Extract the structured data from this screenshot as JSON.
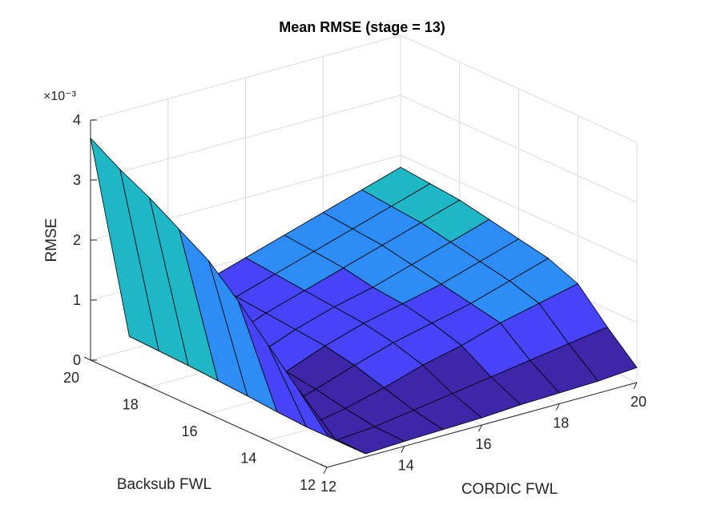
{
  "chart_data": {
    "type": "surface",
    "title": "Mean RMSE (stage = 13)",
    "xlabel": "CORDIC FWL",
    "ylabel": "Backsub FWL",
    "zlabel": "RMSE",
    "z_exponent_label": "×10⁻³",
    "x": [
      12,
      13,
      14,
      15,
      16,
      17,
      18,
      19,
      20
    ],
    "y": [
      12,
      13,
      14,
      15,
      16,
      17,
      18,
      19,
      20
    ],
    "x_ticks": [
      12,
      14,
      16,
      18,
      20
    ],
    "y_ticks": [
      12,
      14,
      16,
      18,
      20
    ],
    "z_ticks": [
      0,
      1,
      2,
      3,
      4
    ],
    "z_scale": 0.001,
    "xlim": [
      12,
      20
    ],
    "ylim": [
      12,
      20
    ],
    "zlim": [
      0,
      4
    ],
    "grid": true,
    "colormap": [
      "#3e26a8",
      "#4743f8",
      "#2e8cf6",
      "#1fb7c6",
      "#2bc99c",
      "#89cc4d",
      "#f5c42a",
      "#f9fb0e"
    ],
    "z": [
      [
        0.55,
        0.05,
        0.08,
        0.1,
        0.12,
        0.16,
        0.18,
        0.2,
        0.25
      ],
      [
        1.1,
        0.05,
        0.1,
        0.2,
        0.3,
        0.4,
        0.5,
        0.6,
        0.7
      ],
      [
        1.6,
        0.05,
        0.18,
        0.35,
        0.55,
        0.7,
        0.9,
        1.05,
        1.2
      ],
      [
        2.1,
        0.08,
        0.28,
        0.5,
        0.7,
        0.85,
        1.0,
        1.2,
        1.4
      ],
      [
        2.55,
        0.12,
        0.35,
        0.6,
        0.8,
        0.95,
        1.1,
        1.3,
        1.5
      ],
      [
        2.85,
        0.15,
        0.4,
        0.65,
        0.85,
        1.0,
        1.2,
        1.4,
        1.6
      ],
      [
        3.15,
        0.18,
        0.45,
        0.7,
        0.9,
        1.1,
        1.3,
        1.5,
        1.7
      ],
      [
        3.4,
        0.2,
        0.5,
        0.75,
        0.95,
        1.15,
        1.35,
        1.55,
        1.75
      ],
      [
        3.7,
        0.22,
        0.55,
        0.8,
        1.0,
        1.2,
        1.4,
        1.6,
        1.8
      ]
    ]
  }
}
